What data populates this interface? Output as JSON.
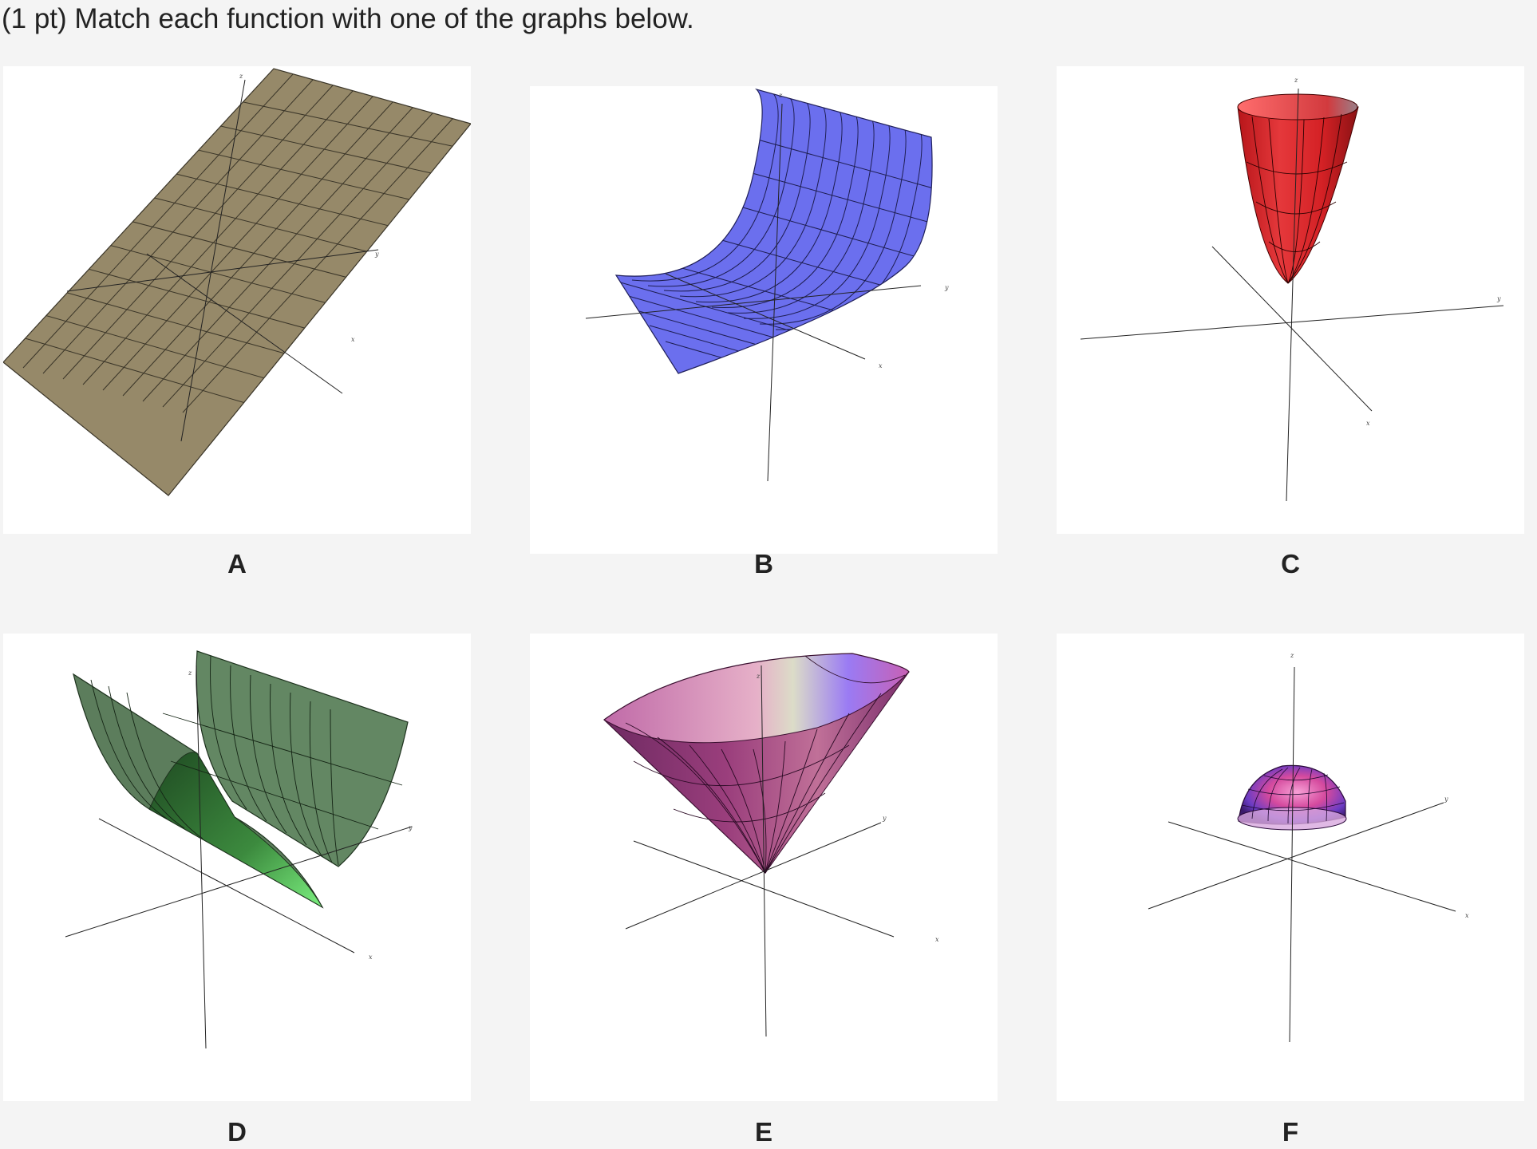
{
  "prompt": "(1 pt) Match each function with one of the graphs below.",
  "graphs": [
    {
      "letter": "A",
      "surface": "plane",
      "color": "#968969"
    },
    {
      "letter": "B",
      "surface": "exponential-sheet",
      "color": "#6b6fee"
    },
    {
      "letter": "C",
      "surface": "paraboloid",
      "color": "#d92a2e"
    },
    {
      "letter": "D",
      "surface": "parabolic-cylinder",
      "color": "#638763"
    },
    {
      "letter": "E",
      "surface": "cone",
      "color": "#a25a98"
    },
    {
      "letter": "F",
      "surface": "hemisphere",
      "color": "#8a4fb5"
    }
  ],
  "axis_labels": {
    "x": "x",
    "y": "y",
    "z": "z"
  }
}
